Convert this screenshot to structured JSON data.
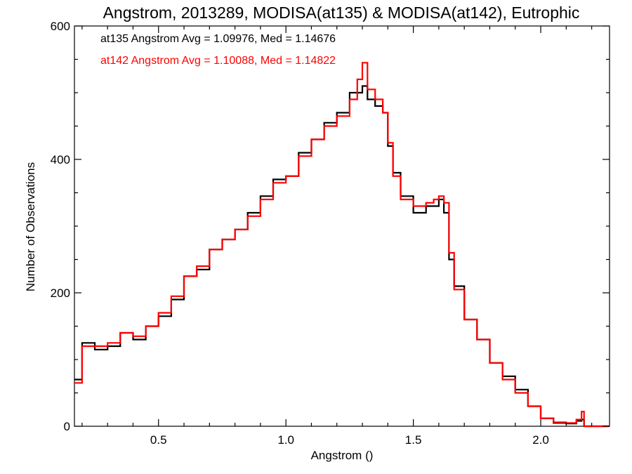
{
  "chart_data": {
    "type": "line",
    "step": true,
    "title": "Angstrom, 2013289, MODISA(at135) & MODISA(at142), Eutrophic",
    "xlabel": "Angstrom ()",
    "ylabel": "Number of Observations",
    "xlim": [
      0.17,
      2.27
    ],
    "ylim": [
      0,
      600
    ],
    "x_ticks": [
      0.5,
      1.0,
      1.5,
      2.0
    ],
    "x_tick_labels": [
      "0.5",
      "1.0",
      "1.5",
      "2.0"
    ],
    "y_ticks": [
      0,
      200,
      400,
      600
    ],
    "y_tick_labels": [
      "0",
      "200",
      "400",
      "600"
    ],
    "grid": false,
    "legend": [
      {
        "text": "at135 Angstrom Avg = 1.09976, Med = 1.14676",
        "color": "#000000"
      },
      {
        "text": "at142 Angstrom Avg = 1.10088, Med = 1.14822",
        "color": "#ff0000"
      }
    ],
    "series": [
      {
        "name": "at135",
        "color": "#000000",
        "x": [
          0.17,
          0.2,
          0.25,
          0.3,
          0.35,
          0.4,
          0.45,
          0.5,
          0.55,
          0.6,
          0.65,
          0.7,
          0.75,
          0.8,
          0.85,
          0.9,
          0.95,
          1.0,
          1.05,
          1.1,
          1.15,
          1.2,
          1.25,
          1.28,
          1.3,
          1.32,
          1.35,
          1.38,
          1.4,
          1.42,
          1.45,
          1.5,
          1.55,
          1.58,
          1.6,
          1.62,
          1.64,
          1.66,
          1.7,
          1.75,
          1.8,
          1.85,
          1.9,
          1.95,
          2.0,
          2.05,
          2.1,
          2.14,
          2.16,
          2.17,
          2.27
        ],
        "y": [
          70,
          125,
          115,
          120,
          140,
          130,
          150,
          165,
          190,
          225,
          235,
          265,
          280,
          295,
          320,
          345,
          370,
          375,
          410,
          430,
          455,
          470,
          500,
          500,
          510,
          490,
          480,
          470,
          420,
          380,
          345,
          320,
          330,
          330,
          340,
          320,
          250,
          210,
          160,
          130,
          95,
          75,
          55,
          30,
          12,
          5,
          4,
          8,
          10,
          0,
          0
        ]
      },
      {
        "name": "at142",
        "color": "#ff0000",
        "x": [
          0.17,
          0.2,
          0.25,
          0.3,
          0.35,
          0.4,
          0.45,
          0.5,
          0.55,
          0.6,
          0.65,
          0.7,
          0.75,
          0.8,
          0.85,
          0.9,
          0.95,
          1.0,
          1.05,
          1.1,
          1.15,
          1.2,
          1.25,
          1.28,
          1.3,
          1.32,
          1.35,
          1.38,
          1.4,
          1.42,
          1.45,
          1.5,
          1.55,
          1.58,
          1.6,
          1.62,
          1.64,
          1.66,
          1.7,
          1.75,
          1.8,
          1.85,
          1.9,
          1.95,
          2.0,
          2.05,
          2.1,
          2.14,
          2.16,
          2.17,
          2.27
        ],
        "y": [
          65,
          120,
          120,
          125,
          140,
          135,
          150,
          170,
          195,
          225,
          240,
          265,
          280,
          295,
          315,
          340,
          365,
          375,
          405,
          430,
          450,
          465,
          490,
          520,
          545,
          505,
          490,
          470,
          425,
          375,
          340,
          330,
          335,
          340,
          345,
          335,
          260,
          205,
          160,
          130,
          95,
          70,
          50,
          30,
          12,
          6,
          5,
          10,
          22,
          0,
          0
        ]
      }
    ]
  }
}
